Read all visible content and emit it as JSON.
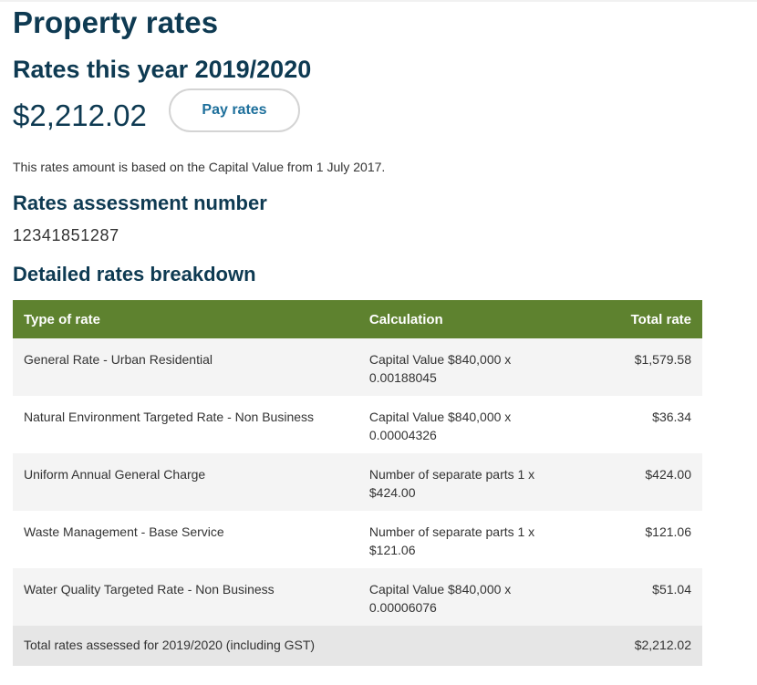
{
  "page": {
    "title": "Property rates"
  },
  "rates": {
    "heading": "Rates this year 2019/2020",
    "amount": "$2,212.02",
    "pay_button_label": "Pay rates",
    "basis_note": "This rates amount is based on the Capital Value from 1 July 2017."
  },
  "assessment": {
    "heading": "Rates assessment number",
    "number": "12341851287"
  },
  "breakdown": {
    "heading": "Detailed rates breakdown",
    "columns": {
      "type": "Type of rate",
      "calculation": "Calculation",
      "total": "Total rate"
    },
    "rows": [
      {
        "type": "General Rate - Urban Residential",
        "calculation": "Capital Value $840,000 x 0.00188045",
        "total": "$1,579.58"
      },
      {
        "type": "Natural Environment Targeted Rate - Non Business",
        "calculation": "Capital Value $840,000 x 0.00004326",
        "total": "$36.34"
      },
      {
        "type": "Uniform Annual General Charge",
        "calculation": "Number of separate parts 1 x $424.00",
        "total": "$424.00"
      },
      {
        "type": "Waste Management - Base Service",
        "calculation": "Number of separate parts 1 x $121.06",
        "total": "$121.06"
      },
      {
        "type": "Water Quality Targeted Rate - Non Business",
        "calculation": "Capital Value $840,000 x 0.00006076",
        "total": "$51.04"
      }
    ],
    "footer": {
      "label": "Total rates assessed for 2019/2020 (including GST)",
      "total": "$2,212.02"
    }
  },
  "colors": {
    "heading": "#0e3a52",
    "table_header": "#5e822f",
    "button_text": "#1d6f9b"
  }
}
